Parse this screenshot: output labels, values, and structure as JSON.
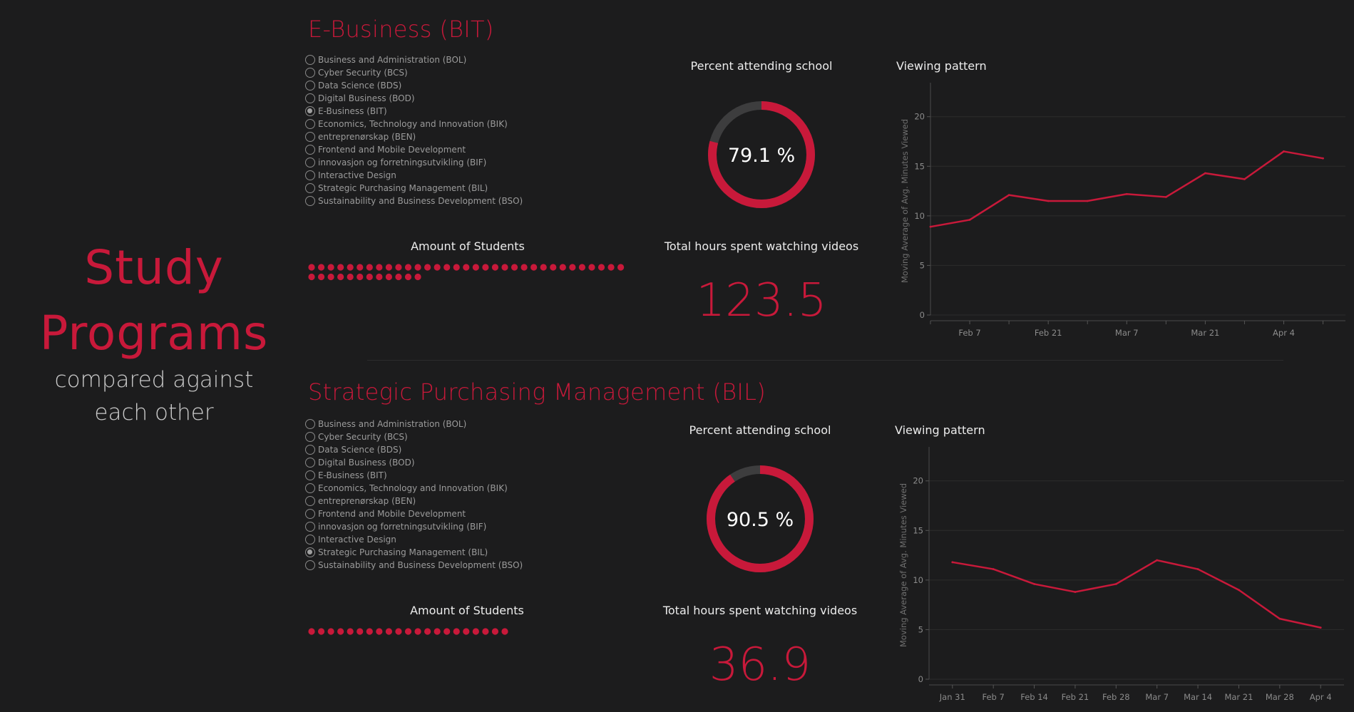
{
  "hero": {
    "title_line1": "Study",
    "title_line2": "Programs",
    "subtitle_line1": "compared against",
    "subtitle_line2": "each other"
  },
  "colors": {
    "accent": "#c8193a",
    "background": "#1c1c1d",
    "track": "#3d3d3e"
  },
  "panels": [
    {
      "title": "E-Business (BIT)",
      "options": [
        "Business and Administration (BOL)",
        "Cyber Security (BCS)",
        "Data Science (BDS)",
        "Digital Business  (BOD)",
        "E-Business (BIT)",
        "Economics, Technology and Innovation  (BIK)",
        "entreprenørskap (BEN)",
        "Frontend and Mobile Development",
        "innovasjon og forretningsutvikling (BIF)",
        "Interactive Design",
        "Strategic Purchasing Management (BIL)",
        "Sustainability and Business Development (BSO)"
      ],
      "selected_index": 4,
      "attendance_label": "Percent attending school",
      "attendance_value": 79.1,
      "attendance_text": "79.1 %",
      "students_label": "Amount of Students",
      "student_count": 45,
      "hours_label": "Total hours spent watching videos",
      "hours_value": "123.5",
      "viewing_label": "Viewing pattern",
      "chart_data": {
        "type": "line",
        "ylabel": "Moving Average of Avg. Minutes Viewed",
        "ylim": [
          0,
          23
        ],
        "yticks": [
          0,
          5,
          10,
          15,
          20
        ],
        "x_range": [
          "2022-01-31",
          "2022-04-15"
        ],
        "xtick_labels": [
          "Feb 7",
          "Feb 21",
          "Mar 7",
          "Mar 21",
          "Apr 4"
        ],
        "xtick_dates": [
          "2022-02-07",
          "2022-02-21",
          "2022-03-07",
          "2022-03-21",
          "2022-04-04"
        ],
        "x": [
          "2022-01-31",
          "2022-02-07",
          "2022-02-14",
          "2022-02-21",
          "2022-02-28",
          "2022-03-07",
          "2022-03-14",
          "2022-03-21",
          "2022-03-28",
          "2022-04-04",
          "2022-04-11"
        ],
        "series": [
          {
            "values": [
              8.9,
              9.6,
              12.1,
              11.5,
              11.5,
              12.2,
              11.9,
              14.3,
              13.7,
              16.5,
              15.8
            ]
          }
        ],
        "grid": true
      }
    },
    {
      "title": "Strategic Purchasing Management (BIL)",
      "options": [
        "Business and Administration (BOL)",
        "Cyber Security (BCS)",
        "Data Science (BDS)",
        "Digital Business  (BOD)",
        "E-Business (BIT)",
        "Economics, Technology and Innovation  (BIK)",
        "entreprenørskap (BEN)",
        "Frontend and Mobile Development",
        "innovasjon og forretningsutvikling (BIF)",
        "Interactive Design",
        "Strategic Purchasing Management (BIL)",
        "Sustainability and Business Development (BSO)"
      ],
      "selected_index": 10,
      "attendance_label": "Percent attending school",
      "attendance_value": 90.5,
      "attendance_text": "90.5 %",
      "students_label": "Amount of Students",
      "student_count": 21,
      "hours_label": "Total hours spent watching videos",
      "hours_value": "36.9",
      "viewing_label": "Viewing pattern",
      "chart_data": {
        "type": "line",
        "ylabel": "Moving Average of Avg. Minutes Viewed",
        "ylim": [
          0,
          23
        ],
        "yticks": [
          0,
          5,
          10,
          15,
          20
        ],
        "x_range": [
          "2022-01-27",
          "2022-04-08"
        ],
        "xtick_labels": [
          "Jan 31",
          "Feb 7",
          "Feb 14",
          "Feb 21",
          "Feb 28",
          "Mar 7",
          "Mar 14",
          "Mar 21",
          "Mar 28",
          "Apr 4"
        ],
        "xtick_dates": [
          "2022-01-31",
          "2022-02-07",
          "2022-02-14",
          "2022-02-21",
          "2022-02-28",
          "2022-03-07",
          "2022-03-14",
          "2022-03-21",
          "2022-03-28",
          "2022-04-04"
        ],
        "x": [
          "2022-01-31",
          "2022-02-07",
          "2022-02-14",
          "2022-02-21",
          "2022-02-28",
          "2022-03-07",
          "2022-03-14",
          "2022-03-21",
          "2022-03-28",
          "2022-04-04"
        ],
        "series": [
          {
            "values": [
              11.8,
              11.1,
              9.6,
              8.8,
              9.6,
              12.0,
              11.1,
              9.0,
              6.1,
              5.2
            ]
          }
        ],
        "grid": true
      }
    }
  ]
}
